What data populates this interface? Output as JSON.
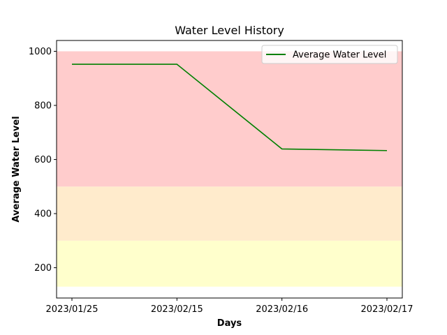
{
  "chart_data": {
    "type": "line",
    "title": "Water Level History",
    "xlabel": "Days",
    "ylabel": "Average Water Level",
    "categories": [
      "2023/01/25",
      "2023/02/15",
      "2023/02/16",
      "2023/02/17"
    ],
    "series": [
      {
        "name": "Average Water Level",
        "values": [
          952,
          952,
          639,
          633
        ],
        "color": "#008000"
      }
    ],
    "ylim": [
      88,
      1040
    ],
    "yticks": [
      200,
      400,
      600,
      800,
      1000
    ],
    "bands": [
      {
        "from": 130,
        "to": 300,
        "color": "#ffffcc"
      },
      {
        "from": 300,
        "to": 500,
        "color": "#ffebcc"
      },
      {
        "from": 500,
        "to": 1000,
        "color": "#ffcccc"
      }
    ],
    "grid": false,
    "legend_position": "top-right"
  }
}
